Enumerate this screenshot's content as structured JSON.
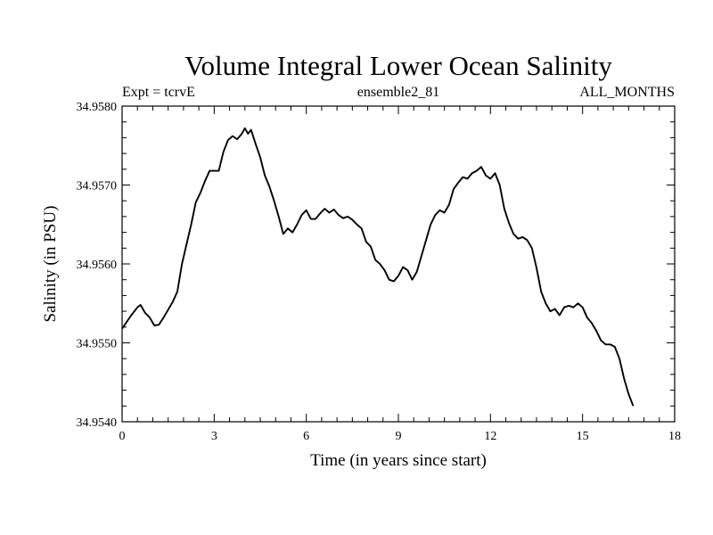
{
  "chart_data": {
    "type": "line",
    "title": "Volume Integral Lower Ocean Salinity",
    "subtitle_left": "Expt = tcrvE",
    "subtitle_center": "ensemble2_81",
    "subtitle_right": "ALL_MONTHS",
    "xlabel": "Time (in years since start)",
    "ylabel": "Salinity (in PSU)",
    "xlim": [
      0,
      18
    ],
    "ylim": [
      34.954,
      34.958
    ],
    "x_ticks": [
      0,
      3,
      6,
      9,
      12,
      15,
      18
    ],
    "x_tick_labels": [
      "0",
      "3",
      "6",
      "9",
      "12",
      "15",
      "18"
    ],
    "y_ticks": [
      34.954,
      34.955,
      34.956,
      34.957,
      34.958
    ],
    "y_tick_labels": [
      "34.9540",
      "34.9550",
      "34.9560",
      "34.9570",
      "34.9580"
    ],
    "grid": false,
    "series": [
      {
        "name": "Volume Integral Lower Ocean Salinity",
        "color": "#000000",
        "x": [
          0.0,
          0.3,
          0.5,
          0.6,
          0.75,
          0.9,
          1.05,
          1.2,
          1.35,
          1.5,
          1.65,
          1.8,
          1.95,
          2.1,
          2.25,
          2.4,
          2.55,
          2.7,
          2.85,
          3.0,
          3.15,
          3.3,
          3.45,
          3.6,
          3.75,
          3.9,
          4.0,
          4.1,
          4.2,
          4.35,
          4.5,
          4.65,
          4.8,
          4.95,
          5.1,
          5.25,
          5.4,
          5.55,
          5.7,
          5.85,
          6.0,
          6.15,
          6.3,
          6.45,
          6.6,
          6.75,
          6.9,
          7.05,
          7.2,
          7.35,
          7.5,
          7.65,
          7.8,
          7.95,
          8.1,
          8.25,
          8.4,
          8.55,
          8.7,
          8.85,
          9.0,
          9.15,
          9.3,
          9.45,
          9.6,
          9.75,
          9.9,
          10.05,
          10.2,
          10.35,
          10.5,
          10.65,
          10.8,
          10.95,
          11.1,
          11.25,
          11.4,
          11.55,
          11.7,
          11.85,
          12.0,
          12.15,
          12.3,
          12.45,
          12.6,
          12.75,
          12.9,
          13.05,
          13.2,
          13.35,
          13.5,
          13.65,
          13.8,
          13.95,
          14.1,
          14.25,
          14.4,
          14.55,
          14.7,
          14.85,
          15.0,
          15.15,
          15.3,
          15.45,
          15.6,
          15.75,
          15.9,
          16.05,
          16.2,
          16.35,
          16.5,
          16.65
        ],
        "y": [
          34.95518,
          34.95535,
          34.95545,
          34.95548,
          34.95538,
          34.95532,
          34.95522,
          34.95523,
          34.95532,
          34.95542,
          34.95552,
          34.95565,
          34.956,
          34.95625,
          34.9565,
          34.95678,
          34.9569,
          34.95705,
          34.95718,
          34.95718,
          34.95718,
          34.95742,
          34.95757,
          34.95762,
          34.95758,
          34.95765,
          34.95772,
          34.95765,
          34.9577,
          34.95752,
          34.95735,
          34.95712,
          34.95698,
          34.9568,
          34.9566,
          34.95638,
          34.95645,
          34.9564,
          34.9565,
          34.95662,
          34.95668,
          34.95657,
          34.95657,
          34.95664,
          34.9567,
          34.95665,
          34.95669,
          34.95662,
          34.95658,
          34.9566,
          34.95656,
          34.9565,
          34.95645,
          34.95628,
          34.95622,
          34.95605,
          34.956,
          34.95592,
          34.9558,
          34.95578,
          34.95585,
          34.95596,
          34.95592,
          34.9558,
          34.9559,
          34.9561,
          34.9563,
          34.9565,
          34.95662,
          34.95668,
          34.95665,
          34.95675,
          34.95695,
          34.95703,
          34.9571,
          34.95708,
          34.95715,
          34.95718,
          34.95723,
          34.95712,
          34.95708,
          34.95715,
          34.957,
          34.9567,
          34.95652,
          34.95638,
          34.95632,
          34.95634,
          34.9563,
          34.9562,
          34.95595,
          34.95565,
          34.9555,
          34.9554,
          34.95543,
          34.95535,
          34.95545,
          34.95547,
          34.95545,
          34.9555,
          34.95545,
          34.95532,
          34.95525,
          34.95515,
          34.95503,
          34.95498,
          34.95498,
          34.95495,
          34.9548,
          34.95455,
          34.95435,
          34.9542
        ]
      }
    ]
  }
}
